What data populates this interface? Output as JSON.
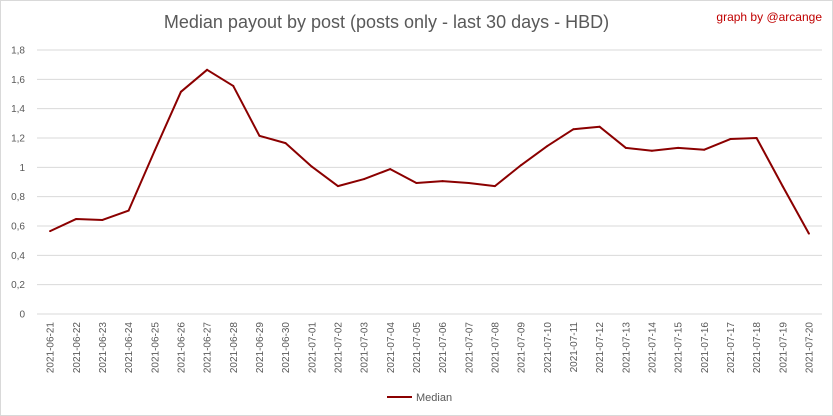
{
  "chart_data": {
    "type": "line",
    "title": "Median payout by post (posts only - last 30 days - HBD)",
    "credit": "graph by @arcange",
    "x": [
      "2021-06-21",
      "2021-06-22",
      "2021-06-23",
      "2021-06-24",
      "2021-06-25",
      "2021-06-26",
      "2021-06-27",
      "2021-06-28",
      "2021-06-29",
      "2021-06-30",
      "2021-07-01",
      "2021-07-02",
      "2021-07-03",
      "2021-07-04",
      "2021-07-05",
      "2021-07-06",
      "2021-07-07",
      "2021-07-08",
      "2021-07-09",
      "2021-07-10",
      "2021-07-11",
      "2021-07-12",
      "2021-07-13",
      "2021-07-14",
      "2021-07-15",
      "2021-07-16",
      "2021-07-17",
      "2021-07-18",
      "2021-07-19",
      "2021-07-20"
    ],
    "series": [
      {
        "name": "Median",
        "color": "#8b0000",
        "values": [
          0.565,
          0.648,
          0.641,
          0.705,
          1.115,
          1.515,
          1.665,
          1.555,
          1.215,
          1.165,
          1.005,
          0.872,
          0.92,
          0.988,
          0.893,
          0.906,
          0.893,
          0.872,
          1.015,
          1.145,
          1.26,
          1.277,
          1.133,
          1.113,
          1.133,
          1.12,
          1.193,
          1.2,
          0.87,
          0.548
        ]
      }
    ],
    "yticks": [
      "0",
      "0,2",
      "0,4",
      "0,6",
      "0,8",
      "1",
      "1,2",
      "1,4",
      "1,6",
      "1,8"
    ],
    "ylim": [
      0,
      1.8
    ],
    "grid": true,
    "legend_position": "bottom"
  }
}
